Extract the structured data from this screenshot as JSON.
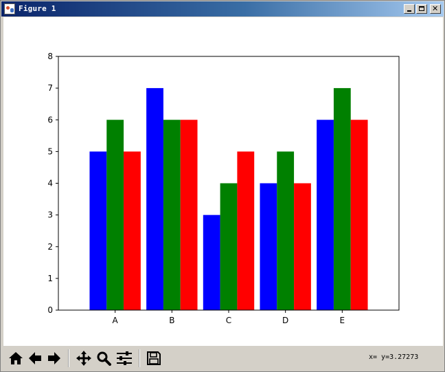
{
  "window": {
    "title": "Figure 1",
    "icon": "matplotlib-figure-icon",
    "controls": [
      "minimize-icon",
      "maximize-icon",
      "close-icon"
    ]
  },
  "toolbar": {
    "tools": [
      {
        "name": "home-button",
        "icon": "home-icon"
      },
      {
        "name": "back-button",
        "icon": "arrow-left-icon"
      },
      {
        "name": "forward-button",
        "icon": "arrow-right-icon"
      },
      {
        "name": "pan-button",
        "icon": "move-arrows-icon"
      },
      {
        "name": "zoom-button",
        "icon": "magnifier-icon"
      },
      {
        "name": "configure-subplots-button",
        "icon": "sliders-icon"
      },
      {
        "name": "save-button",
        "icon": "floppy-disk-icon"
      }
    ],
    "coordinates": "x= y=3.27273"
  },
  "colors": {
    "series": [
      "#0000ff",
      "#008000",
      "#ff0000"
    ]
  },
  "chart_data": {
    "type": "bar",
    "title": "",
    "xlabel": "",
    "ylabel": "",
    "categories": [
      "A",
      "B",
      "C",
      "D",
      "E"
    ],
    "series": [
      {
        "values": [
          5,
          7,
          3,
          4,
          6
        ]
      },
      {
        "values": [
          6,
          6,
          4,
          5,
          7
        ]
      },
      {
        "values": [
          5,
          6,
          5,
          4,
          6
        ]
      }
    ],
    "ylim": [
      0,
      8
    ],
    "yticks": [
      "0",
      "1",
      "2",
      "3",
      "4",
      "5",
      "6",
      "7",
      "8"
    ],
    "grid": false,
    "legend": "none"
  }
}
